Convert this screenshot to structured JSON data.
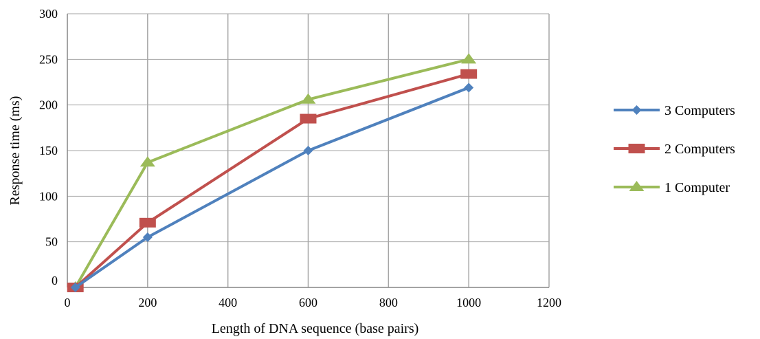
{
  "chart_data": {
    "type": "line",
    "title": "",
    "xlabel": "Length of DNA sequence (base pairs)",
    "ylabel": "Response time (ms)",
    "xlim": [
      0,
      1200
    ],
    "ylim": [
      0,
      300
    ],
    "x_ticks": [
      0,
      200,
      400,
      600,
      800,
      1000,
      1200
    ],
    "y_ticks": [
      0,
      50,
      100,
      150,
      200,
      250,
      300
    ],
    "grid": true,
    "legend_position": "right",
    "series": [
      {
        "name": "3 Computers",
        "color": "#4F81BD",
        "marker": "diamond",
        "x": [
          20,
          200,
          600,
          1000
        ],
        "values": [
          0,
          55,
          150,
          219
        ]
      },
      {
        "name": "2 Computers",
        "color": "#C0504D",
        "marker": "square",
        "x": [
          20,
          200,
          600,
          1000
        ],
        "values": [
          0,
          71,
          185,
          234
        ]
      },
      {
        "name": "1 Computer",
        "color": "#9BBB59",
        "marker": "triangle",
        "x": [
          20,
          200,
          600,
          1000
        ],
        "values": [
          0,
          137,
          206,
          250
        ]
      }
    ]
  }
}
